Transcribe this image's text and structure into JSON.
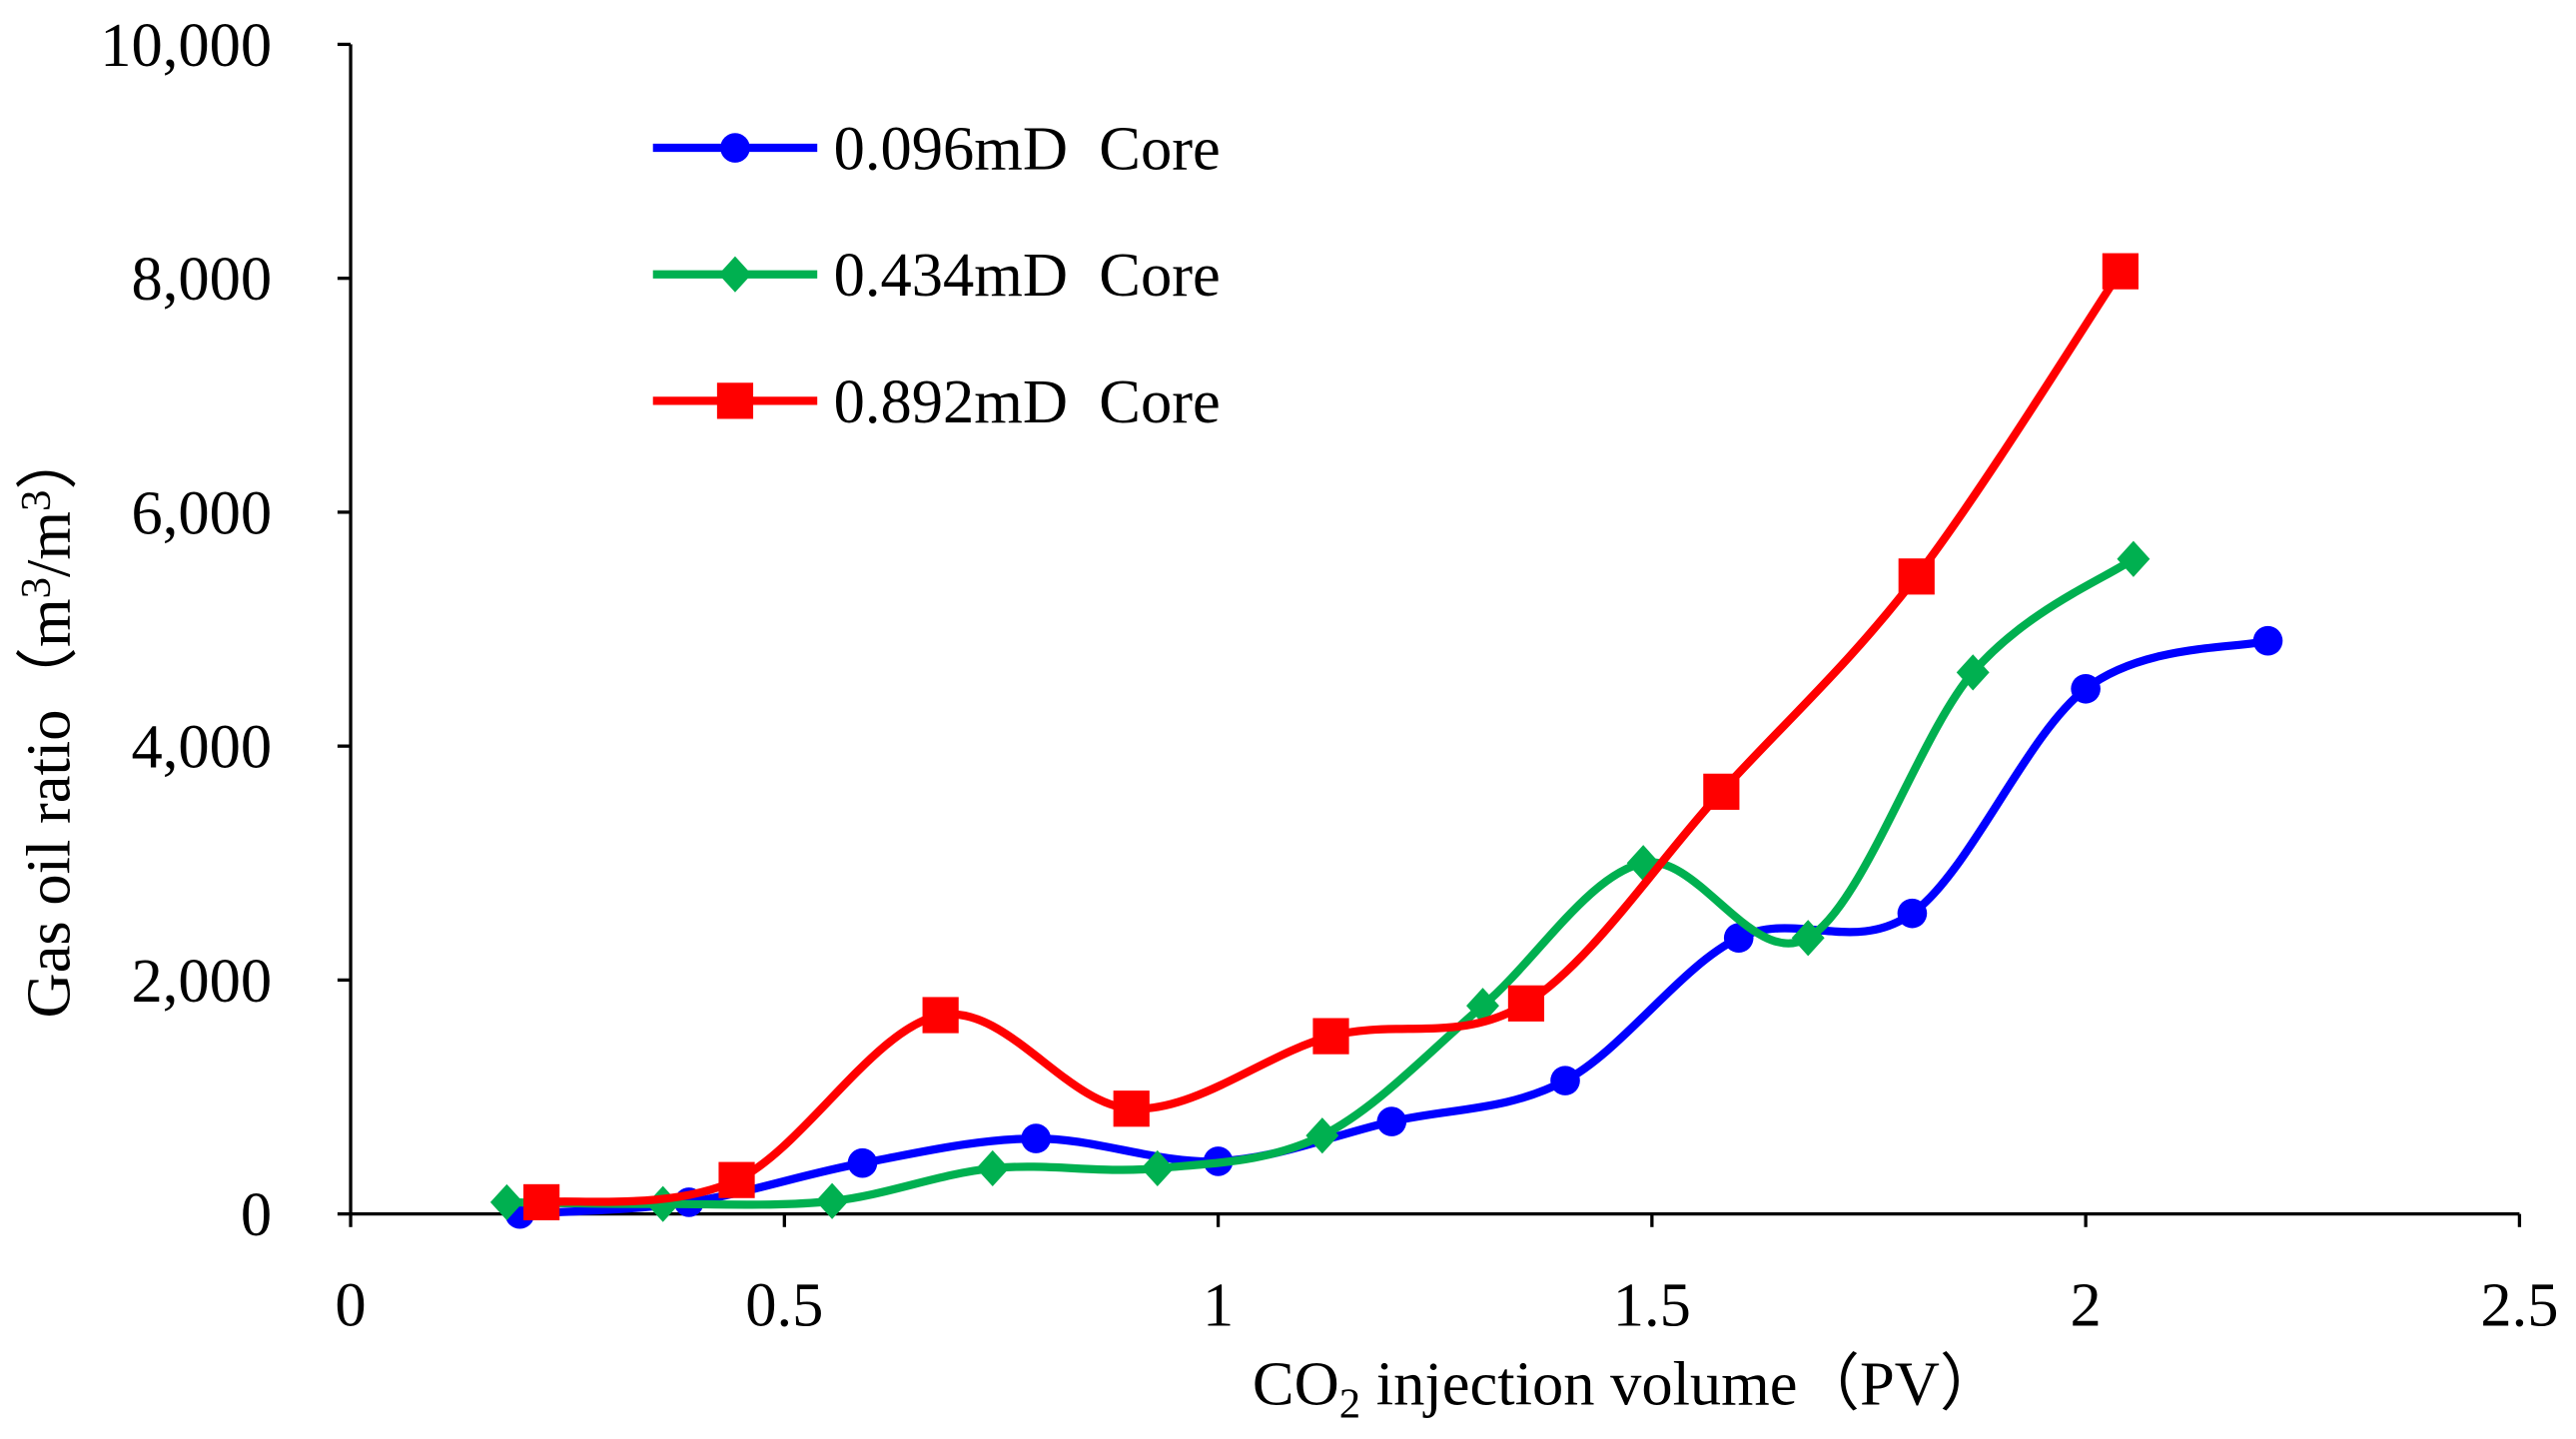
{
  "chart_data": {
    "type": "line",
    "title": "",
    "xlabel": "CO2 injection volume（PV）",
    "xlabel_parts": {
      "pre": "CO",
      "sub": "2",
      "post": " injection volume（PV）"
    },
    "ylabel": "Gas oil ratio（m3/m3）",
    "ylabel_parts": {
      "pre": "Gas oil ratio（m",
      "sup1": "3",
      "mid": "/m",
      "sup2": "3",
      "post": "）"
    },
    "xlim": [
      0,
      2.5
    ],
    "ylim": [
      0,
      10000
    ],
    "x_ticks": [
      0,
      0.5,
      1,
      1.5,
      2,
      2.5
    ],
    "x_tick_labels": [
      "0",
      "0.5",
      "1",
      "1.5",
      "2",
      "2.5"
    ],
    "y_ticks": [
      0,
      2000,
      4000,
      6000,
      8000,
      10000
    ],
    "y_tick_labels": [
      "0",
      "2,000",
      "4,000",
      "6,000",
      "8,000",
      "10,000"
    ],
    "grid": false,
    "legend_position": "top-left",
    "series": [
      {
        "name": "0.096mD  Core",
        "color": "#0000FF",
        "marker": "circle",
        "x": [
          0.195,
          0.39,
          0.59,
          0.79,
          1.0,
          1.2,
          1.4,
          1.6,
          1.8,
          2.0,
          2.21
        ],
        "y": [
          0,
          100,
          435,
          645,
          450,
          790,
          1140,
          2360,
          2570,
          4490,
          4900
        ]
      },
      {
        "name": "0.434mD  Core",
        "color": "#00B050",
        "marker": "diamond",
        "x": [
          0.18,
          0.36,
          0.555,
          0.74,
          0.93,
          1.12,
          1.305,
          1.49,
          1.68,
          1.87,
          2.055
        ],
        "y": [
          100,
          85,
          110,
          390,
          390,
          670,
          1780,
          3000,
          2360,
          4630,
          5600
        ]
      },
      {
        "name": "0.892mD  Core",
        "color": "#FF0000",
        "marker": "square",
        "x": [
          0.22,
          0.445,
          0.68,
          0.9,
          1.13,
          1.355,
          1.58,
          1.805,
          2.04
        ],
        "y": [
          100,
          290,
          1700,
          900,
          1520,
          1800,
          3610,
          5450,
          8060
        ]
      }
    ]
  }
}
